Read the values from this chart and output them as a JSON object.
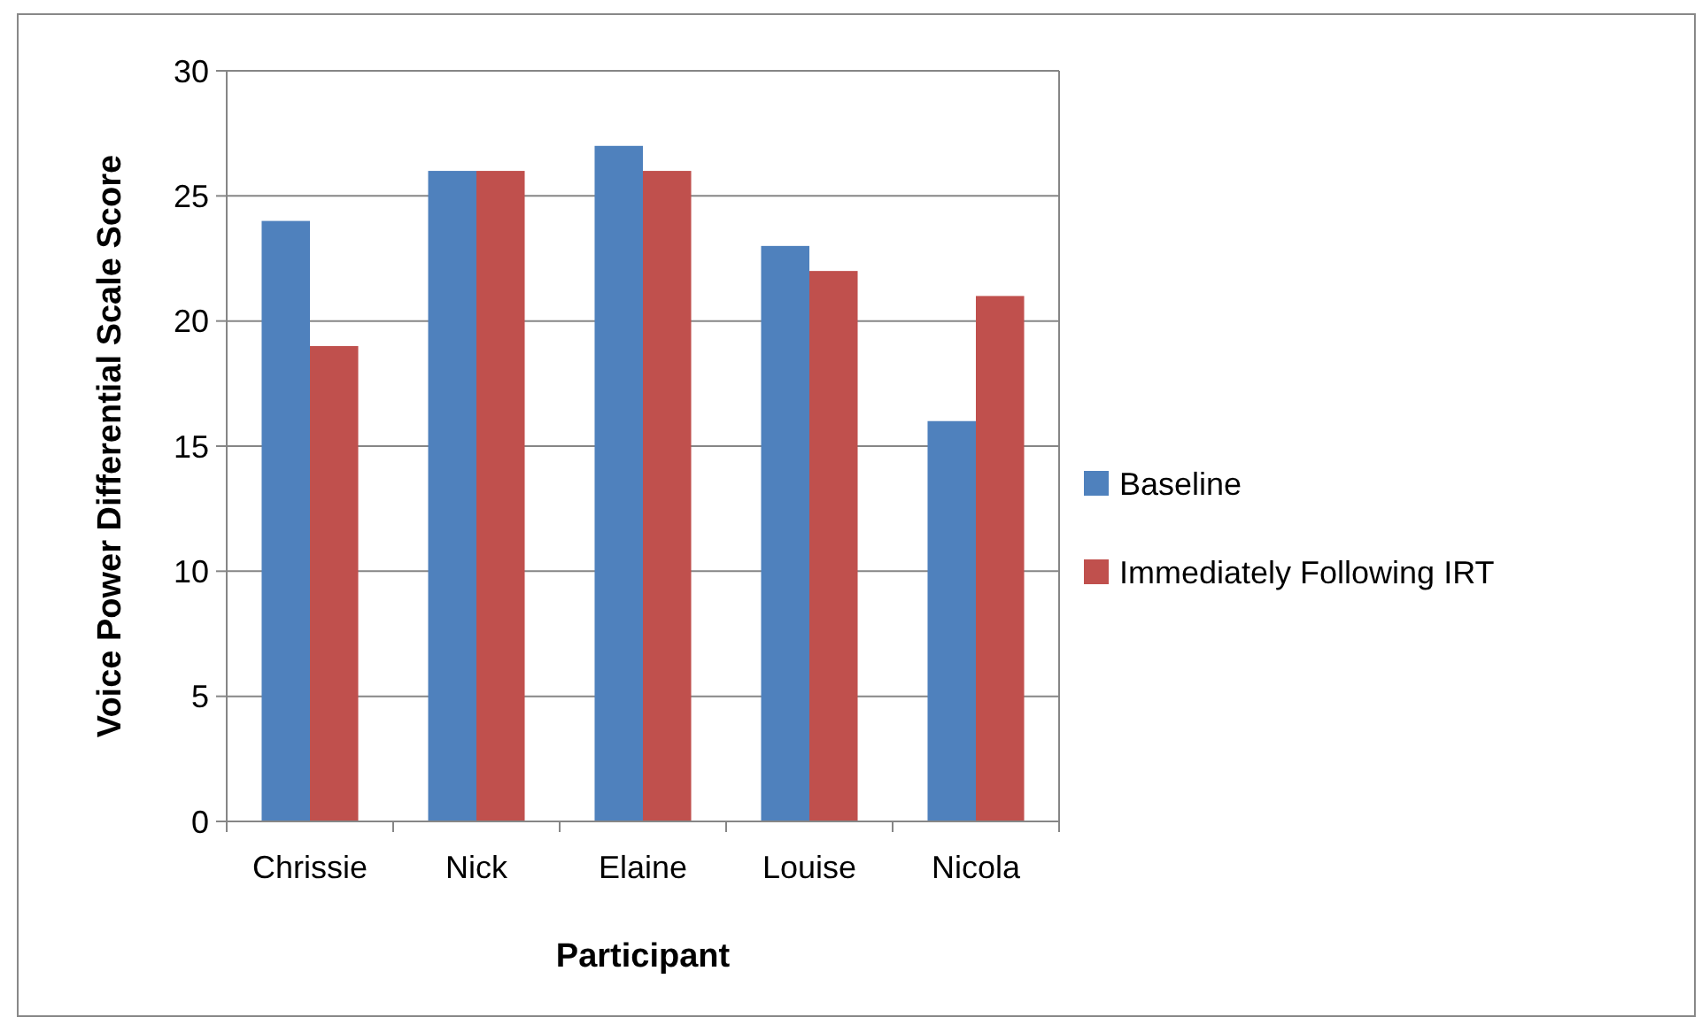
{
  "chart_data": {
    "type": "bar",
    "xlabel": "Participant",
    "ylabel": "Voice Power Differential Scale Score",
    "categories": [
      "Chrissie",
      "Nick",
      "Elaine",
      "Louise",
      "Nicola"
    ],
    "series": [
      {
        "name": "Baseline",
        "color": "#4f81bd",
        "values": [
          24,
          26,
          27,
          23,
          16
        ]
      },
      {
        "name": "Immediately Following IRT",
        "color": "#c0504d",
        "values": [
          19,
          26,
          26,
          22,
          21
        ]
      }
    ],
    "ylim": [
      0,
      30
    ],
    "yticks": [
      0,
      5,
      10,
      15,
      20,
      25,
      30
    ],
    "grid": "y",
    "legend": "right"
  }
}
